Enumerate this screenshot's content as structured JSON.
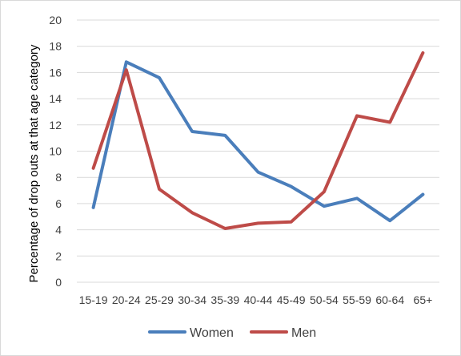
{
  "chart_data": {
    "type": "line",
    "title": "",
    "xlabel": "",
    "ylabel": "Percentage of drop outs at that age category",
    "categories": [
      "15-19",
      "20-24",
      "25-29",
      "30-34",
      "35-39",
      "40-44",
      "45-49",
      "50-54",
      "55-59",
      "60-64",
      "65+"
    ],
    "ylim": [
      0,
      20
    ],
    "yticks": [
      0,
      2,
      4,
      6,
      8,
      10,
      12,
      14,
      16,
      18,
      20
    ],
    "grid": true,
    "legend_position": "bottom",
    "series": [
      {
        "name": "Women",
        "color": "#4a7ebb",
        "values": [
          5.7,
          16.8,
          15.6,
          11.5,
          11.2,
          8.4,
          7.3,
          5.8,
          6.4,
          4.7,
          6.7
        ]
      },
      {
        "name": "Men",
        "color": "#be4b48",
        "values": [
          8.7,
          16.2,
          7.1,
          5.3,
          4.1,
          4.5,
          4.6,
          6.9,
          12.7,
          12.2,
          17.5
        ]
      }
    ]
  }
}
